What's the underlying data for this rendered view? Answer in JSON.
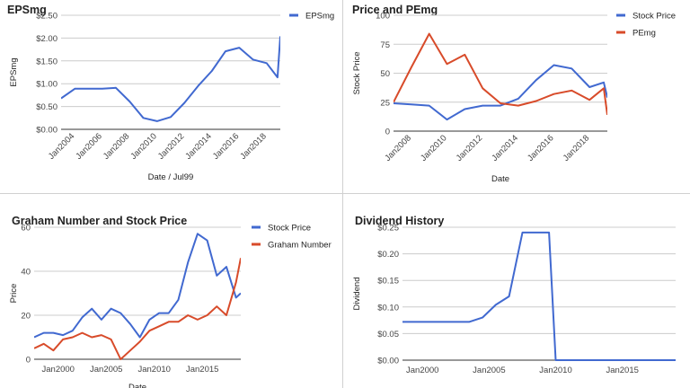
{
  "chart_data": [
    {
      "id": "eps",
      "type": "line",
      "title": "EPSmg",
      "xlabel": "Date / Jul99",
      "ylabel": "EPSmg",
      "xlim": [
        2003,
        2019
      ],
      "ylim": [
        0,
        2.5
      ],
      "y_ticks": [
        0,
        0.5,
        1.0,
        1.5,
        2.0,
        2.5
      ],
      "y_tick_labels": [
        "$0.00",
        "$0.50",
        "$1.00",
        "$1.50",
        "$2.00",
        "$2.50"
      ],
      "x_ticks": [
        2004,
        2006,
        2008,
        2010,
        2012,
        2014,
        2016,
        2018
      ],
      "x_tick_labels": [
        "Jan2004",
        "Jan2006",
        "Jan2008",
        "Jan2010",
        "Jan2012",
        "Jan2014",
        "Jan2016",
        "Jan2018"
      ],
      "x_tick_rotate": true,
      "legend": "right",
      "series": [
        {
          "name": "EPSmg",
          "color": "#4169d0",
          "x": [
            2003,
            2004,
            2005,
            2006,
            2007,
            2008,
            2009,
            2010,
            2011,
            2012,
            2013,
            2014,
            2015,
            2016,
            2017,
            2018,
            2018.8,
            2019
          ],
          "y": [
            0.68,
            0.89,
            0.89,
            0.89,
            0.91,
            0.61,
            0.25,
            0.18,
            0.27,
            0.58,
            0.95,
            1.28,
            1.71,
            1.79,
            1.53,
            1.45,
            1.14,
            2.04
          ]
        }
      ]
    },
    {
      "id": "price-pe",
      "type": "line",
      "title": "Price and PEmg",
      "xlabel": "Date",
      "ylabel": "Stock Price",
      "xlim": [
        2007,
        2019
      ],
      "ylim": [
        0,
        100
      ],
      "y_ticks": [
        0,
        25,
        50,
        75,
        100
      ],
      "y_tick_labels": [
        "0",
        "25",
        "50",
        "75",
        "100"
      ],
      "x_ticks": [
        2008,
        2010,
        2012,
        2014,
        2016,
        2018
      ],
      "x_tick_labels": [
        "Jan2008",
        "Jan2010",
        "Jan2012",
        "Jan2014",
        "Jan2016",
        "Jan2018"
      ],
      "x_tick_rotate": true,
      "legend": "right",
      "series": [
        {
          "name": "Stock Price",
          "color": "#4169d0",
          "x": [
            2007,
            2008,
            2009,
            2010,
            2011,
            2012,
            2013,
            2014,
            2015,
            2016,
            2017,
            2018,
            2018.8,
            2019
          ],
          "y": [
            24,
            23,
            22,
            10,
            19,
            22,
            22,
            28,
            44,
            57,
            54,
            38,
            42,
            29
          ]
        },
        {
          "name": "PEmg",
          "color": "#d84b2a",
          "x": [
            2007,
            2008,
            2009,
            2010,
            2011,
            2012,
            2013,
            2014,
            2015,
            2016,
            2017,
            2018,
            2018.8,
            2019
          ],
          "y": [
            25,
            55,
            84,
            58,
            66,
            37,
            24,
            22,
            26,
            32,
            35,
            27,
            37,
            14
          ]
        }
      ]
    },
    {
      "id": "graham",
      "type": "line",
      "title": "Graham Number and Stock Price",
      "xlabel": "Date",
      "ylabel": "Price",
      "xlim": [
        1997.5,
        2019
      ],
      "ylim": [
        0,
        60
      ],
      "y_ticks": [
        0,
        20,
        40,
        60
      ],
      "y_tick_labels": [
        "0",
        "20",
        "40",
        "60"
      ],
      "x_ticks": [
        2000,
        2005,
        2010,
        2015
      ],
      "x_tick_labels": [
        "Jan2000",
        "Jan2005",
        "Jan2010",
        "Jan2015"
      ],
      "x_tick_rotate": false,
      "legend": "right",
      "series": [
        {
          "name": "Stock Price",
          "color": "#4169d0",
          "x": [
            1997.5,
            1998.5,
            1999.5,
            2000.5,
            2001.5,
            2002.5,
            2003.5,
            2004.5,
            2005.5,
            2006.5,
            2007.5,
            2008.5,
            2009.5,
            2010.5,
            2011.5,
            2012.5,
            2013.5,
            2014.5,
            2015.5,
            2016.5,
            2017.5,
            2018.5,
            2019
          ],
          "y": [
            10,
            12,
            12,
            11,
            13,
            19,
            23,
            18,
            23,
            21,
            16,
            10,
            18,
            21,
            21,
            27,
            44,
            57,
            54,
            38,
            42,
            28,
            30
          ]
        },
        {
          "name": "Graham Number",
          "color": "#d84b2a",
          "x": [
            1997.5,
            1998.5,
            1999.5,
            2000.5,
            2001.5,
            2002.5,
            2003.5,
            2004.5,
            2005.5,
            2006.5,
            2007.5,
            2008.5,
            2009.5,
            2010.5,
            2011.5,
            2012.5,
            2013.5,
            2014.5,
            2015.5,
            2016.5,
            2017.5,
            2018.5,
            2019
          ],
          "y": [
            5,
            7,
            4,
            9,
            10,
            12,
            10,
            11,
            9,
            0,
            4,
            8,
            13,
            15,
            17,
            17,
            20,
            18,
            20,
            24,
            20,
            35,
            46
          ]
        }
      ]
    },
    {
      "id": "dividend",
      "type": "line",
      "title": "Dividend History",
      "xlabel": "",
      "ylabel": "Dividend",
      "xlim": [
        1998.5,
        2019
      ],
      "ylim": [
        0,
        0.25
      ],
      "y_ticks": [
        0,
        0.05,
        0.1,
        0.15,
        0.2,
        0.25
      ],
      "y_tick_labels": [
        "$0.00",
        "$0.05",
        "$0.10",
        "$0.15",
        "$0.20",
        "$0.25"
      ],
      "x_ticks": [
        2000,
        2005,
        2010,
        2015
      ],
      "x_tick_labels": [
        "Jan2000",
        "Jan2005",
        "Jan2010",
        "Jan2015"
      ],
      "x_tick_rotate": false,
      "legend": "none",
      "series": [
        {
          "name": "",
          "color": "#4169d0",
          "x": [
            1998.5,
            1999.5,
            2000.5,
            2001.5,
            2002.5,
            2003.5,
            2004.5,
            2005.5,
            2006.5,
            2007.5,
            2008.5,
            2009.5,
            2010,
            2011,
            2012,
            2013,
            2014,
            2015,
            2016,
            2017,
            2018,
            2019
          ],
          "y": [
            0.072,
            0.072,
            0.072,
            0.072,
            0.072,
            0.072,
            0.08,
            0.104,
            0.12,
            0.24,
            0.24,
            0.24,
            0,
            0,
            0,
            0,
            0,
            0,
            0,
            0,
            0,
            0
          ]
        }
      ]
    }
  ]
}
